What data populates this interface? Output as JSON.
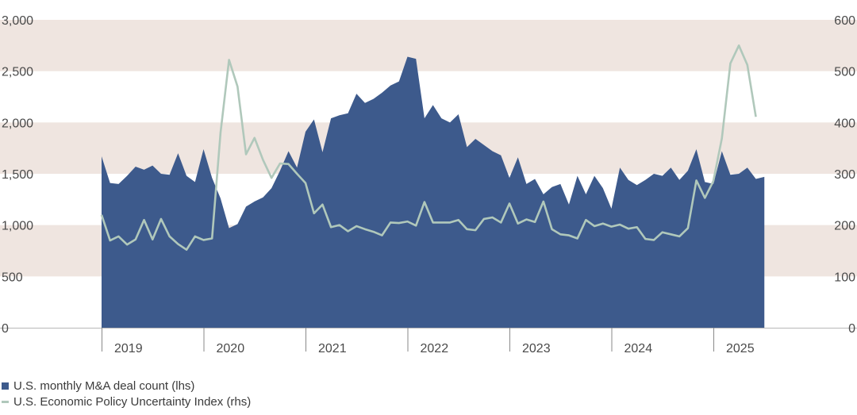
{
  "chart_data": {
    "type": "area",
    "y_left": {
      "ylim": [
        0,
        3000
      ],
      "ticks": [
        "0",
        "500",
        "1,000",
        "1,500",
        "2,000",
        "2,500",
        "3,000"
      ]
    },
    "y_right": {
      "ylim": [
        0,
        600
      ],
      "ticks": [
        "0",
        "100",
        "200",
        "300",
        "400",
        "500",
        "600"
      ]
    },
    "x_years": [
      "2019",
      "2020",
      "2021",
      "2022",
      "2023",
      "2024",
      "2025"
    ],
    "bands": [
      [
        500,
        1000
      ],
      [
        1500,
        2000
      ],
      [
        2500,
        3000
      ]
    ],
    "series": [
      {
        "name": "U.S. monthly M&A deal count (lhs)",
        "kind": "area",
        "axis": "left",
        "color": "#3d5a8c",
        "start": "2019-01",
        "values": [
          1670,
          1410,
          1400,
          1480,
          1570,
          1540,
          1580,
          1500,
          1490,
          1700,
          1480,
          1420,
          1740,
          1460,
          1260,
          970,
          1010,
          1180,
          1230,
          1270,
          1360,
          1530,
          1720,
          1560,
          1910,
          2030,
          1710,
          2040,
          2070,
          2090,
          2280,
          2190,
          2230,
          2290,
          2360,
          2400,
          2640,
          2620,
          2040,
          2170,
          2040,
          2000,
          2080,
          1760,
          1840,
          1780,
          1720,
          1680,
          1460,
          1660,
          1400,
          1450,
          1300,
          1370,
          1400,
          1200,
          1480,
          1300,
          1480,
          1360,
          1160,
          1560,
          1440,
          1390,
          1440,
          1500,
          1480,
          1560,
          1440,
          1530,
          1740,
          1420,
          1400,
          1720,
          1490,
          1500,
          1560,
          1450,
          1470
        ]
      },
      {
        "name": "U.S. Economic Policy Uncertainty Index (rhs)",
        "kind": "line",
        "axis": "right",
        "color": "#b0c8bb",
        "start": "2019-01",
        "values": [
          220,
          170,
          178,
          162,
          172,
          210,
          172,
          212,
          178,
          163,
          152,
          178,
          171,
          174,
          380,
          522,
          470,
          338,
          370,
          327,
          292,
          320,
          319,
          300,
          282,
          223,
          240,
          196,
          200,
          188,
          198,
          192,
          187,
          180,
          205,
          204,
          207,
          199,
          245,
          205,
          205,
          205,
          210,
          192,
          190,
          212,
          215,
          205,
          242,
          203,
          211,
          206,
          246,
          192,
          182,
          180,
          174,
          210,
          198,
          203,
          197,
          201,
          193,
          196,
          173,
          171,
          186,
          182,
          178,
          194,
          287,
          253,
          286,
          369,
          515,
          550,
          512,
          411
        ]
      }
    ]
  }
}
